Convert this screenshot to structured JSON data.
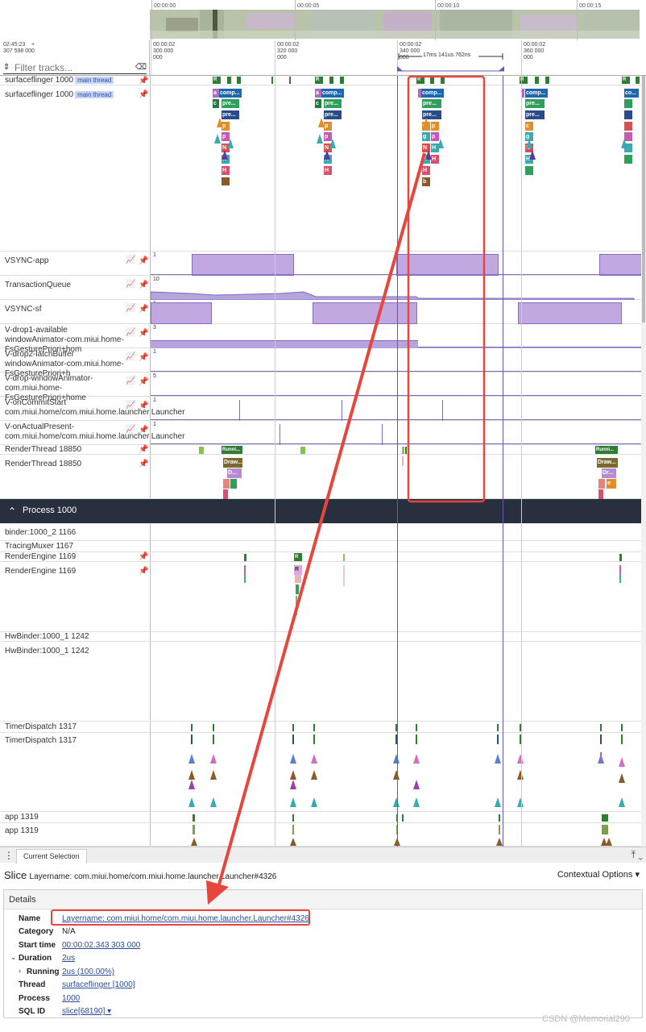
{
  "overview": {
    "ticks": [
      "00:00:00",
      "00:00:05",
      "00:00:10",
      "00:00:15"
    ]
  },
  "timebar": {
    "offset_line1": "02:45:23",
    "offset_plus": "+",
    "offset_line2": "307 598 000",
    "ticks": [
      {
        "l1": "00:00:02",
        "l2": "300 000 000"
      },
      {
        "l1": "00:00:02",
        "l2": "320 000 000"
      },
      {
        "l1": "00:00:02",
        "l2": "340 000 000"
      },
      {
        "l1": "00:00:02",
        "l2": "360 000 000"
      }
    ],
    "span_label": "17ms 141us 762ns",
    "filter_placeholder": "Filter tracks..."
  },
  "tracks": {
    "sf1": {
      "name": "surfaceflinger 1000",
      "tag": "main thread"
    },
    "sf2": {
      "name": "surfaceflinger 1000",
      "tag": "main thread"
    },
    "vsync_app": {
      "name": "VSYNC-app",
      "value": "1"
    },
    "txq": {
      "name": "TransactionQueue",
      "value": "10"
    },
    "vsync_sf": {
      "name": "VSYNC-sf",
      "value": "1"
    },
    "vdrop1": {
      "name": "V-drop1-available windowAnimator-com.miui.home-FsGesturePriori+hom",
      "value": "3"
    },
    "vdrop2": {
      "name": "V-drop2-latchBuffer windowAnimator-com.miui.home-FsGesturePriori+h",
      "value": "1"
    },
    "vdrop": {
      "name": "V-drop-windowAnimator-com.miui.home-FsGesturePriori+home",
      "value": "5"
    },
    "vcommit": {
      "name": "V-onCommitStart com.miui.home/com.miui.home.launcher.Launcher",
      "value": "1"
    },
    "vpresent": {
      "name": "V-onActualPresent-com.miui.home/com.miui.home.launcher.Launcher",
      "value": "1"
    },
    "rt1": {
      "name": "RenderThread 18850"
    },
    "rt2": {
      "name": "RenderThread 18850"
    },
    "process": {
      "name": "Process 1000"
    },
    "binder": {
      "name": "binder:1000_2 1166"
    },
    "tracing": {
      "name": "TracingMuxer 1167"
    },
    "re1": {
      "name": "RenderEngine 1169"
    },
    "re2": {
      "name": "RenderEngine 1169"
    },
    "hw1": {
      "name": "HwBinder:1000_1 1242"
    },
    "hw2": {
      "name": "HwBinder:1000_1 1242"
    },
    "td1": {
      "name": "TimerDispatch 1317"
    },
    "td2": {
      "name": "TimerDispatch 1317"
    },
    "app1": {
      "name": "app 1319"
    },
    "app2": {
      "name": "app 1319"
    }
  },
  "slices": {
    "R": "R",
    "comp": "comp...",
    "pre": "pre...",
    "a": "a",
    "c": "c",
    "p": "p",
    "g": "g",
    "N": "N",
    "H": "H",
    "b": "b",
    "co": "co...",
    "runni": "Runni...",
    "draw": "Draw...",
    "dr": "Dr...",
    "D": "D...",
    "e": "e"
  },
  "panel": {
    "tab": "Current Selection",
    "slice_kind": "Slice",
    "slice_title": "Layername: com.miui.home/com.miui.home.launcher.Launcher#4326",
    "contextual": "Contextual Options",
    "details_header": "Details",
    "rows": {
      "name_k": "Name",
      "name_v": "Layername: com.miui.home/com.miui.home.launcher.Launcher#4326",
      "cat_k": "Category",
      "cat_v": "N/A",
      "start_k": "Start time",
      "start_v": "00:00:02.343 303 000",
      "dur_k": "Duration",
      "dur_v": "2us",
      "run_k": "Running",
      "run_v": "2us (100.00%)",
      "thread_k": "Thread",
      "thread_v": "surfaceflinger [1000]",
      "proc_k": "Process",
      "proc_v": "1000",
      "sql_k": "SQL ID",
      "sql_v": "slice[68190]"
    }
  },
  "watermark": "CSDN @Memorial290"
}
